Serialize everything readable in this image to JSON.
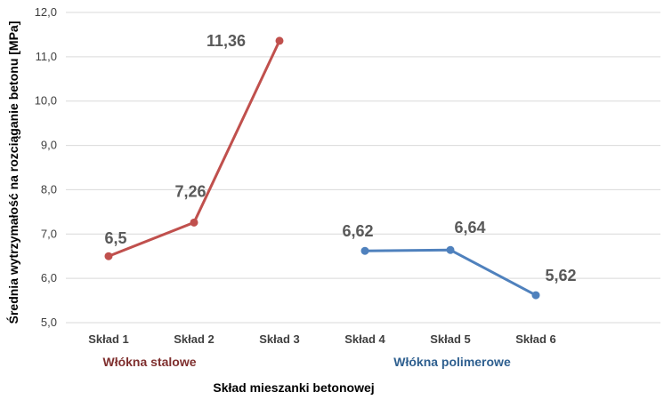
{
  "chart_data": {
    "type": "line",
    "title": "",
    "xlabel": "Skład mieszanki betonowej",
    "ylabel": "Średnia wytrzymałość na rozciąganie betonu [MPa]",
    "ylim": [
      5.0,
      12.0
    ],
    "yticks": [
      "5,0",
      "6,0",
      "7,0",
      "8,0",
      "9,0",
      "10,0",
      "11,0",
      "12,0"
    ],
    "grid": true,
    "categories": [
      "Skład 1",
      "Skład 2",
      "Skład 3",
      "Skład 4",
      "Skład 5",
      "Skład 6"
    ],
    "series": [
      {
        "name": "Włókna stalowe",
        "color": "#c0504d",
        "x": [
          "Skład 1",
          "Skład 2",
          "Skład 3"
        ],
        "values": [
          6.5,
          7.26,
          11.36
        ],
        "labels": [
          "6,5",
          "7,26",
          "11,36"
        ]
      },
      {
        "name": "Włókna polimerowe",
        "color": "#4f81bd",
        "x": [
          "Skład 4",
          "Skład 5",
          "Skład 6"
        ],
        "values": [
          6.62,
          6.64,
          5.62
        ],
        "labels": [
          "6,62",
          "6,64",
          "5,62"
        ]
      }
    ],
    "group_labels": [
      {
        "text": "Włókna stalowe",
        "color": "#7f2f2e"
      },
      {
        "text": "Włókna polimerowe",
        "color": "#2e5f8f"
      }
    ]
  }
}
